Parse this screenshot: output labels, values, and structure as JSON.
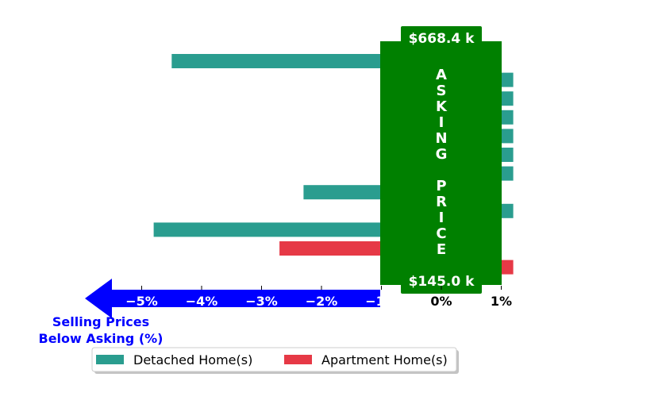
{
  "chart_data": {
    "type": "bar",
    "orientation": "horizontal",
    "xlim": [
      -5.8,
      1.2
    ],
    "x_ticks": [
      -5,
      -4,
      -3,
      -2,
      -1,
      0,
      1
    ],
    "x_tick_labels": [
      "−5%",
      "−4%",
      "−3%",
      "−2%",
      "−1%",
      "0%",
      "1%"
    ],
    "xlabel": "Selling Prices\nBelow Asking (%)",
    "center_band": {
      "label": "ASKING PRICE",
      "top_label": "$668.4 k",
      "bottom_label": "$145.0 k"
    },
    "rows": [
      {
        "series": "Detached Home(s)",
        "value": -4.5
      },
      {
        "series": "Detached Home(s)",
        "value": 1.2
      },
      {
        "series": "Detached Home(s)",
        "value": 1.2
      },
      {
        "series": "Detached Home(s)",
        "value": 1.2
      },
      {
        "series": "Detached Home(s)",
        "value": 1.2
      },
      {
        "series": "Detached Home(s)",
        "value": 1.2
      },
      {
        "series": "Detached Home(s)",
        "value": 1.2
      },
      {
        "series": "Detached Home(s)",
        "value": -2.3
      },
      {
        "series": "Detached Home(s)",
        "value": 1.2
      },
      {
        "series": "Detached Home(s)",
        "value": -4.8
      },
      {
        "series": "Apartment Home(s)",
        "value": -2.7
      },
      {
        "series": "Apartment Home(s)",
        "value": 1.2
      }
    ],
    "legend": {
      "placement": "bottom",
      "entries": [
        {
          "name": "Detached Home(s)",
          "color": "#2a9d8f"
        },
        {
          "name": "Apartment Home(s)",
          "color": "#e63946"
        }
      ]
    },
    "colors": {
      "band": "#008000",
      "arrow": "#0000ff",
      "axis_label": "#0000ff"
    }
  }
}
